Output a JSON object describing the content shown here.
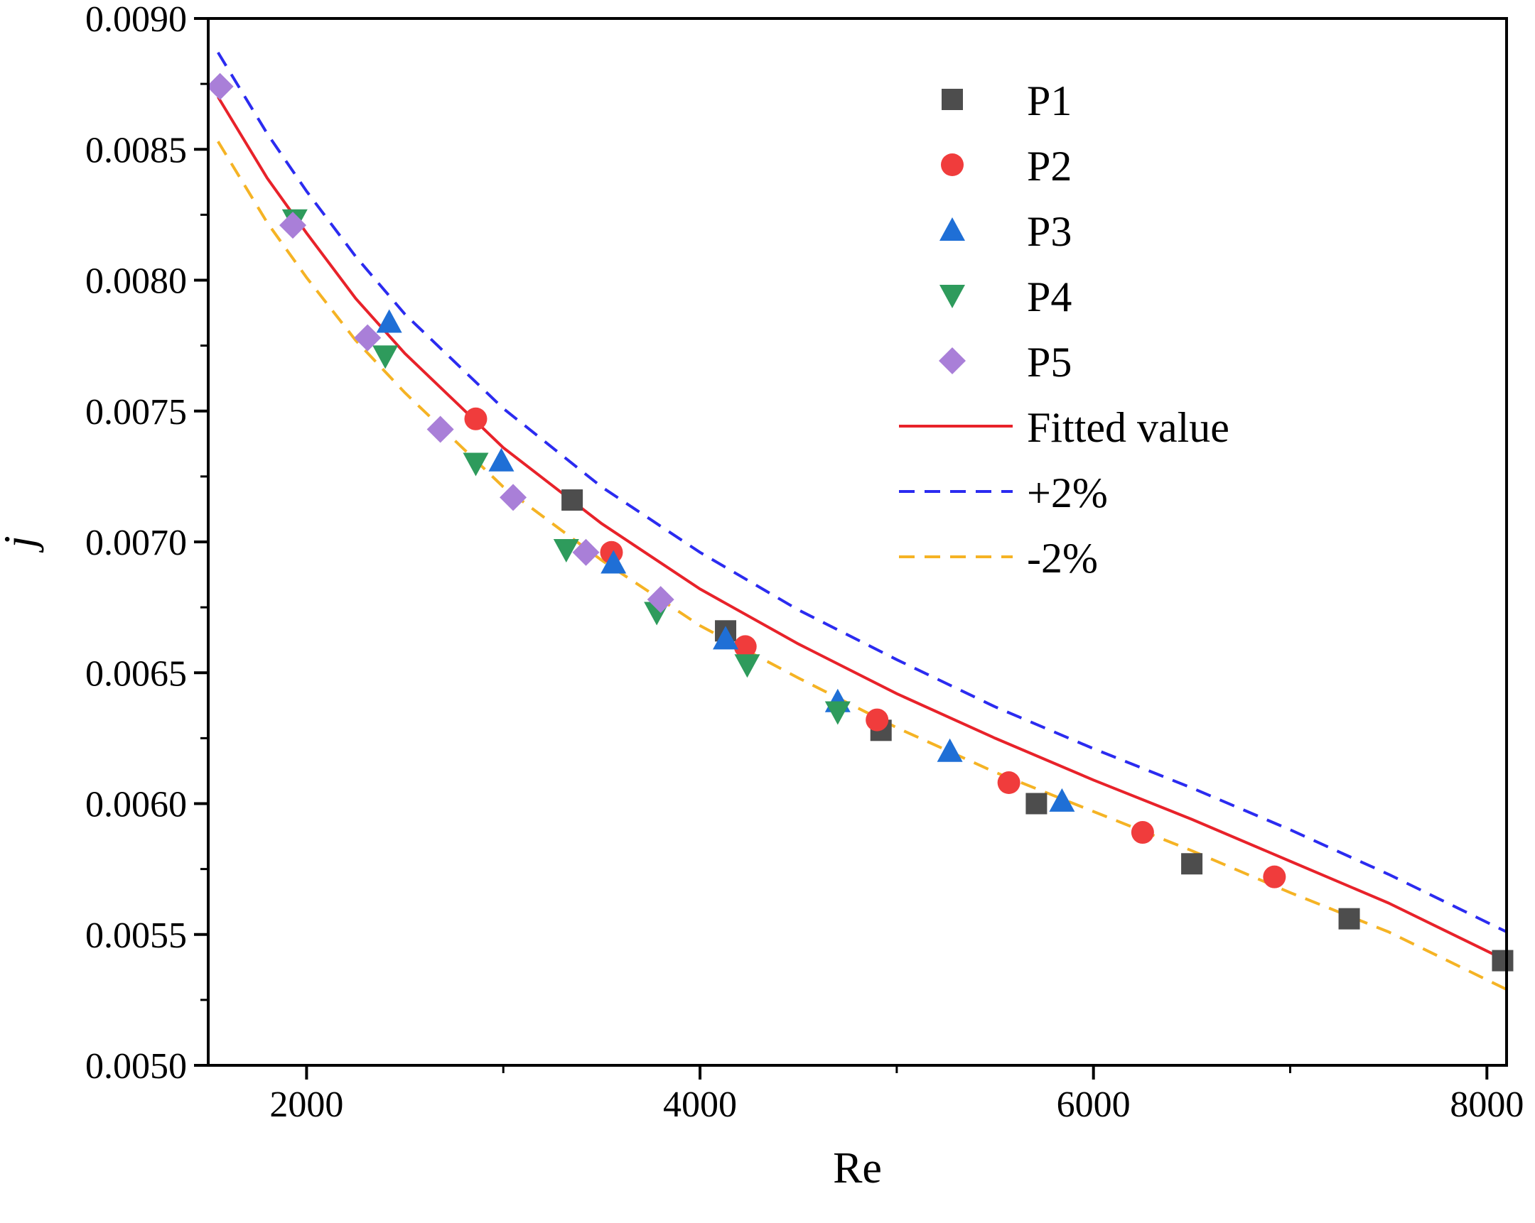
{
  "chart_data": {
    "type": "scatter",
    "xlabel": "Re",
    "ylabel": "j",
    "xlim": [
      1500,
      8100
    ],
    "ylim": [
      0.005,
      0.009
    ],
    "xticks": [
      2000,
      4000,
      6000,
      8000
    ],
    "xtick_labels": [
      "2000",
      "4000",
      "6000",
      "8000"
    ],
    "yticks": [
      0.005,
      0.0055,
      0.006,
      0.0065,
      0.007,
      0.0075,
      0.008,
      0.0085,
      0.009
    ],
    "ytick_labels": [
      "0.0050",
      "0.0055",
      "0.0060",
      "0.0065",
      "0.0070",
      "0.0075",
      "0.0080",
      "0.0085",
      "0.0090"
    ],
    "grid": false,
    "legend_position": "top-right",
    "series": [
      {
        "name": "P1",
        "marker": "square",
        "color": "#4d4d4d",
        "points": [
          [
            3350,
            0.00716
          ],
          [
            4130,
            0.00666
          ],
          [
            4920,
            0.00628
          ],
          [
            5710,
            0.006
          ],
          [
            6500,
            0.00577
          ],
          [
            7300,
            0.00556
          ],
          [
            8080,
            0.0054
          ]
        ]
      },
      {
        "name": "P2",
        "marker": "circle",
        "color": "#f03c3c",
        "points": [
          [
            2860,
            0.00747
          ],
          [
            3550,
            0.00696
          ],
          [
            4230,
            0.0066
          ],
          [
            4900,
            0.00632
          ],
          [
            5570,
            0.00608
          ],
          [
            6250,
            0.00589
          ],
          [
            6920,
            0.00572
          ]
        ]
      },
      {
        "name": "P3",
        "marker": "triangle-up",
        "color": "#1f6fd6",
        "points": [
          [
            2420,
            0.00784
          ],
          [
            2990,
            0.00731
          ],
          [
            3560,
            0.00692
          ],
          [
            4130,
            0.00663
          ],
          [
            4700,
            0.00639
          ],
          [
            5270,
            0.0062
          ],
          [
            5840,
            0.00601
          ]
        ]
      },
      {
        "name": "P4",
        "marker": "triangle-down",
        "color": "#2e9b5c",
        "points": [
          [
            1940,
            0.00823
          ],
          [
            2400,
            0.00771
          ],
          [
            2860,
            0.0073
          ],
          [
            3320,
            0.00697
          ],
          [
            3780,
            0.00673
          ],
          [
            4240,
            0.00653
          ],
          [
            4700,
            0.00635
          ]
        ]
      },
      {
        "name": "P5",
        "marker": "diamond",
        "color": "#a97fd8",
        "points": [
          [
            1560,
            0.00874
          ],
          [
            1930,
            0.00821
          ],
          [
            2310,
            0.00778
          ],
          [
            2680,
            0.00743
          ],
          [
            3050,
            0.00717
          ],
          [
            3420,
            0.00696
          ],
          [
            3800,
            0.00678
          ]
        ]
      }
    ],
    "lines": [
      {
        "name": "Fitted value",
        "style": "solid",
        "color": "#e8222a",
        "x": [
          1550,
          1800,
          2000,
          2250,
          2500,
          3000,
          3500,
          4000,
          4500,
          5000,
          5500,
          6000,
          6500,
          7000,
          7500,
          8100
        ],
        "y": [
          0.0087,
          0.00839,
          0.00818,
          0.00793,
          0.00772,
          0.00736,
          0.00707,
          0.00682,
          0.00661,
          0.00642,
          0.00625,
          0.00609,
          0.00594,
          0.00578,
          0.00562,
          0.0054
        ]
      },
      {
        "name": "+2%",
        "style": "dashed",
        "color": "#2b2bf0",
        "x": [
          1550,
          1800,
          2000,
          2250,
          2500,
          3000,
          3500,
          4000,
          4500,
          5000,
          5500,
          6000,
          6500,
          7000,
          7500,
          8100
        ],
        "y": [
          0.00887,
          0.00856,
          0.00834,
          0.00809,
          0.00787,
          0.00751,
          0.00721,
          0.00696,
          0.00674,
          0.00655,
          0.00637,
          0.00621,
          0.00606,
          0.0059,
          0.00573,
          0.00551
        ]
      },
      {
        "name": "-2%",
        "style": "dashed",
        "color": "#f5b324",
        "x": [
          1550,
          1800,
          2000,
          2250,
          2500,
          3000,
          3500,
          4000,
          4500,
          5000,
          5500,
          6000,
          6500,
          7000,
          7500,
          8100
        ],
        "y": [
          0.00853,
          0.00822,
          0.00801,
          0.00777,
          0.00757,
          0.00721,
          0.00693,
          0.00668,
          0.00648,
          0.00629,
          0.00612,
          0.00597,
          0.00582,
          0.00566,
          0.00551,
          0.00529
        ]
      }
    ]
  }
}
